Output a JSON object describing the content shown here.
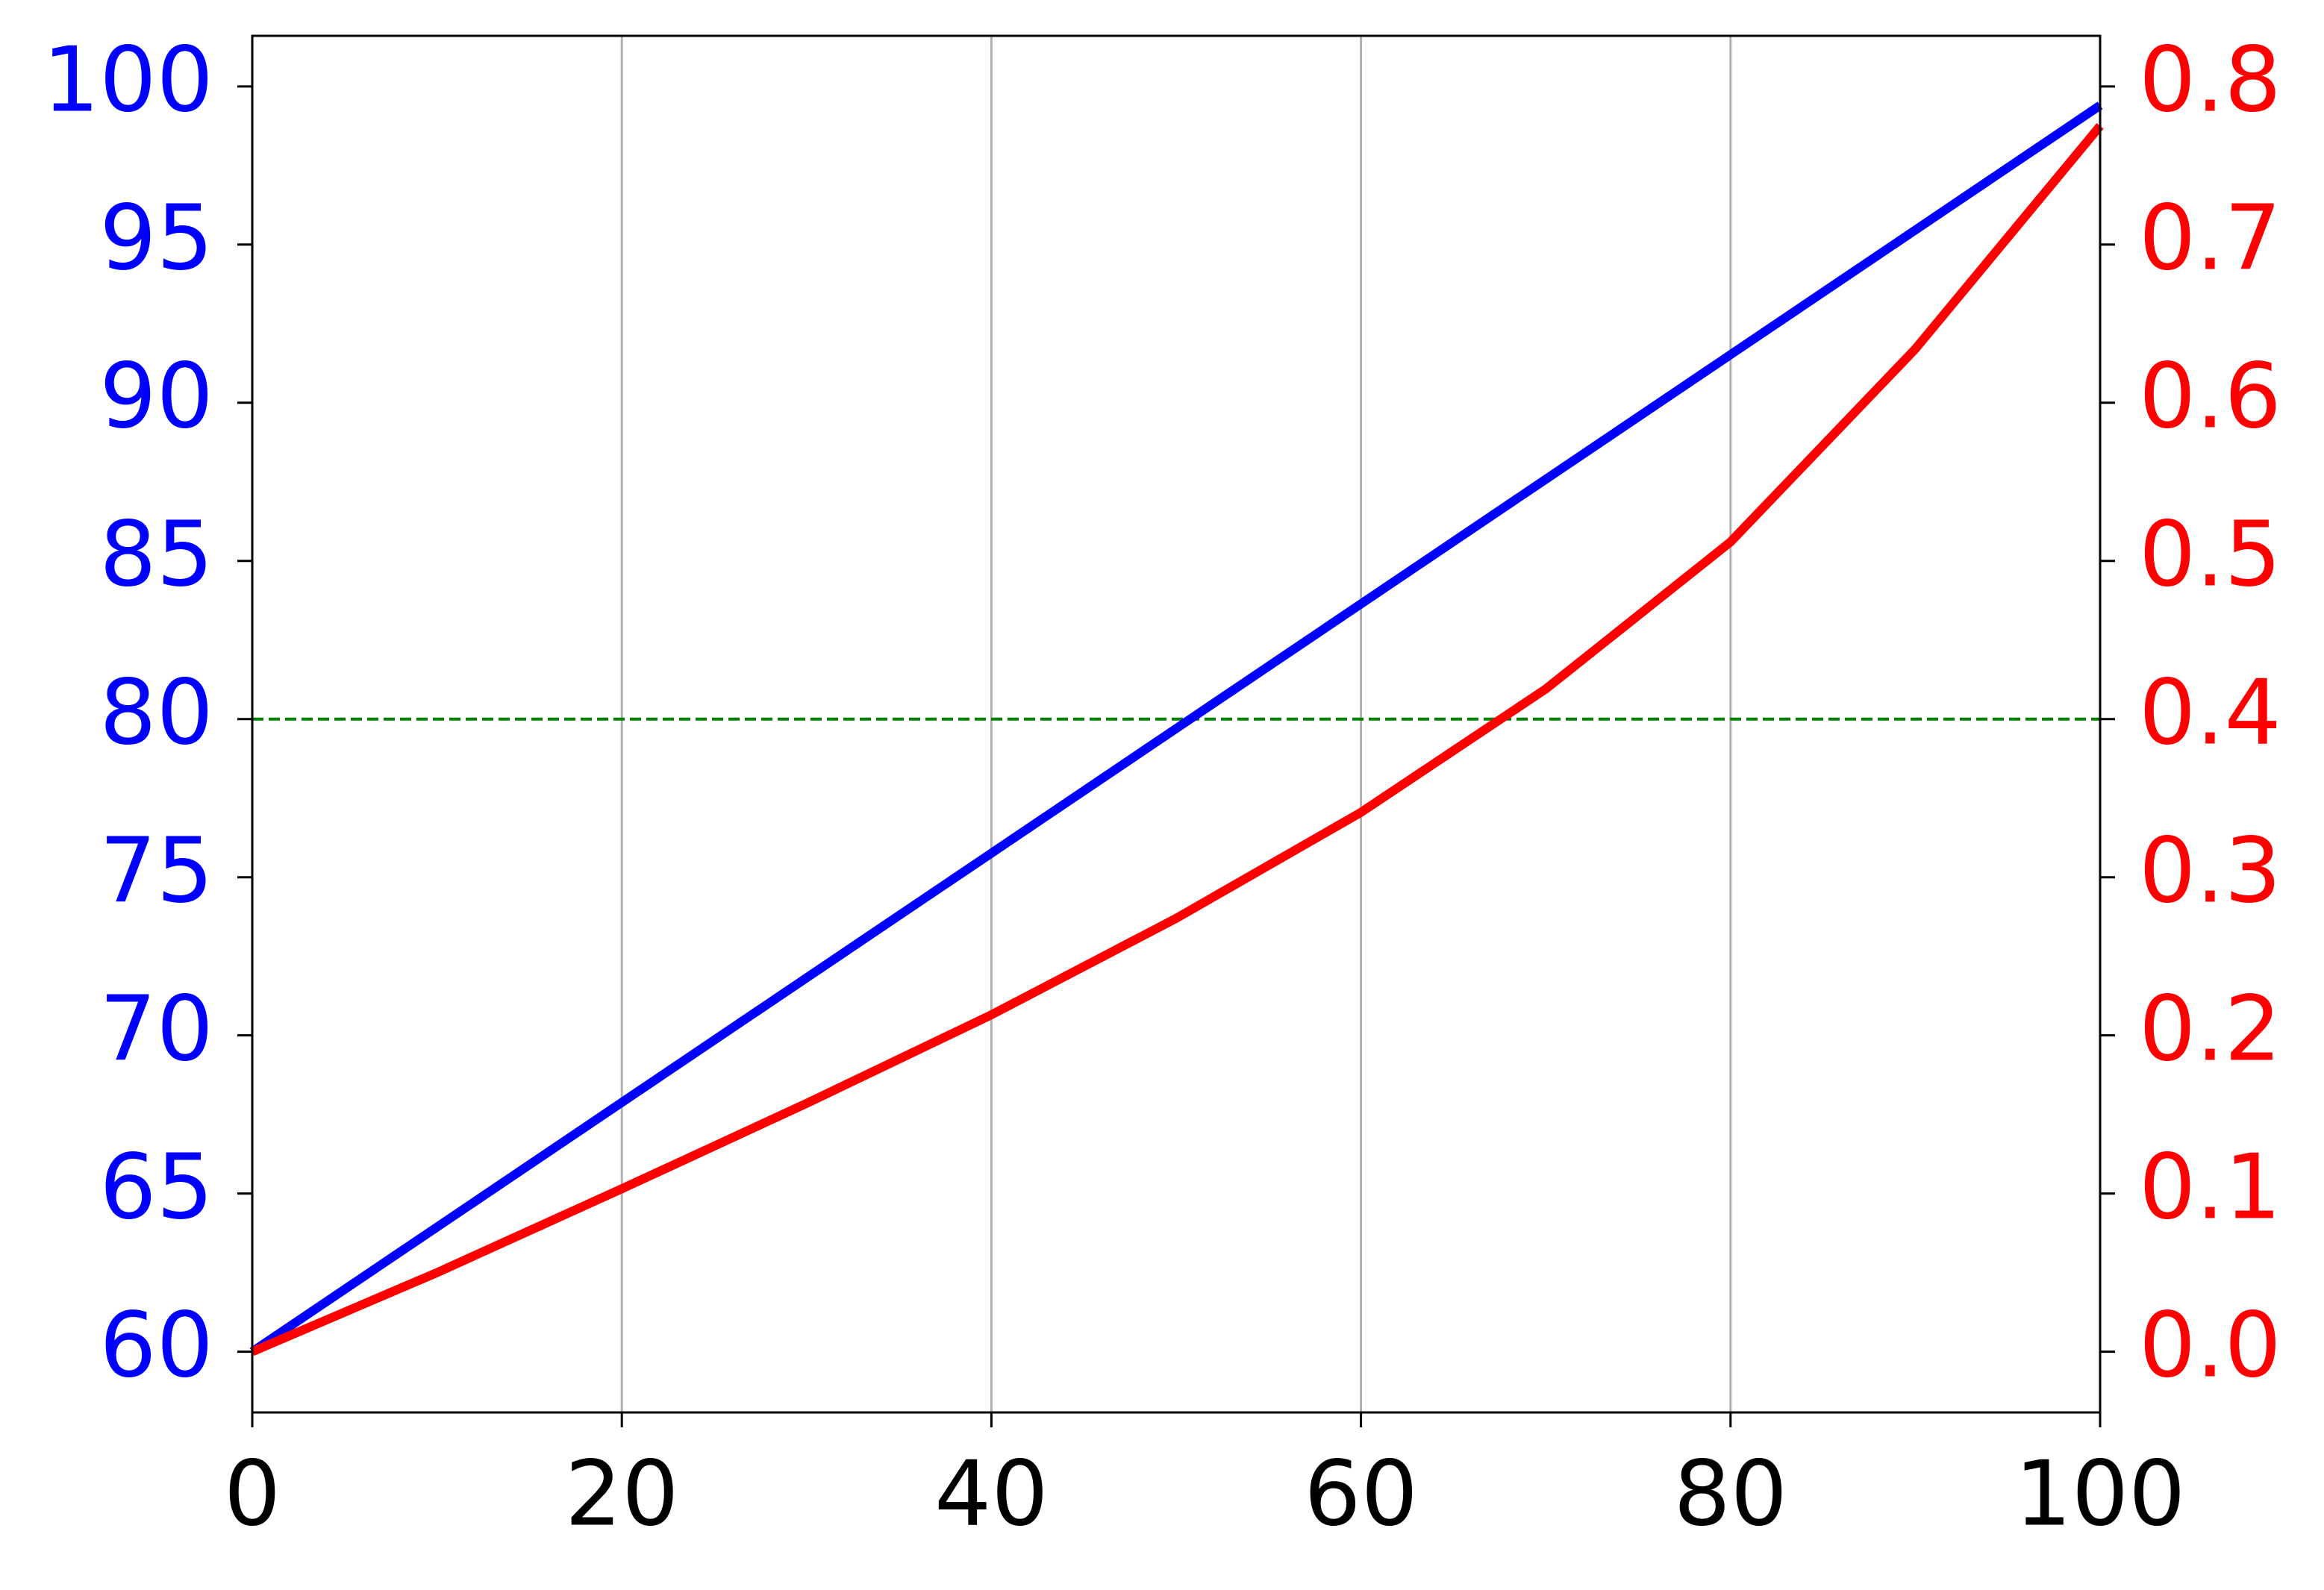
{
  "chart_data": {
    "type": "line",
    "x": [
      0,
      10,
      20,
      30,
      40,
      50,
      60,
      70,
      80,
      90,
      100
    ],
    "series": [
      {
        "color": "blue",
        "axis": "y",
        "values": [
          60,
          63.94,
          67.88,
          71.82,
          75.76,
          79.7,
          83.64,
          87.58,
          91.52,
          95.46,
          99.4
        ]
      },
      {
        "color": "red",
        "axis": "y2",
        "values": [
          0,
          0.05,
          0.103,
          0.157,
          0.213,
          0.274,
          0.341,
          0.419,
          0.512,
          0.634,
          0.775
        ]
      }
    ],
    "xlim": [
      0,
      100
    ],
    "xticks": [
      0,
      20,
      40,
      60,
      80,
      100
    ],
    "ylim": [
      58.08,
      101.6
    ],
    "yticks": [
      60,
      65,
      70,
      75,
      80,
      85,
      90,
      95,
      100
    ],
    "ytick_color": "blue",
    "y2lim": [
      -0.0384,
      0.832
    ],
    "y2ticks": [
      {
        "value": 0,
        "label": "0.0"
      },
      0.1,
      0.2,
      0.3,
      0.4,
      0.5,
      0.6,
      0.7,
      0.8
    ],
    "y2tick_color": "red",
    "grid": "x",
    "reference_line": {
      "value": 0.4,
      "axis": "y2",
      "color": "green",
      "style": "dashed"
    }
  }
}
